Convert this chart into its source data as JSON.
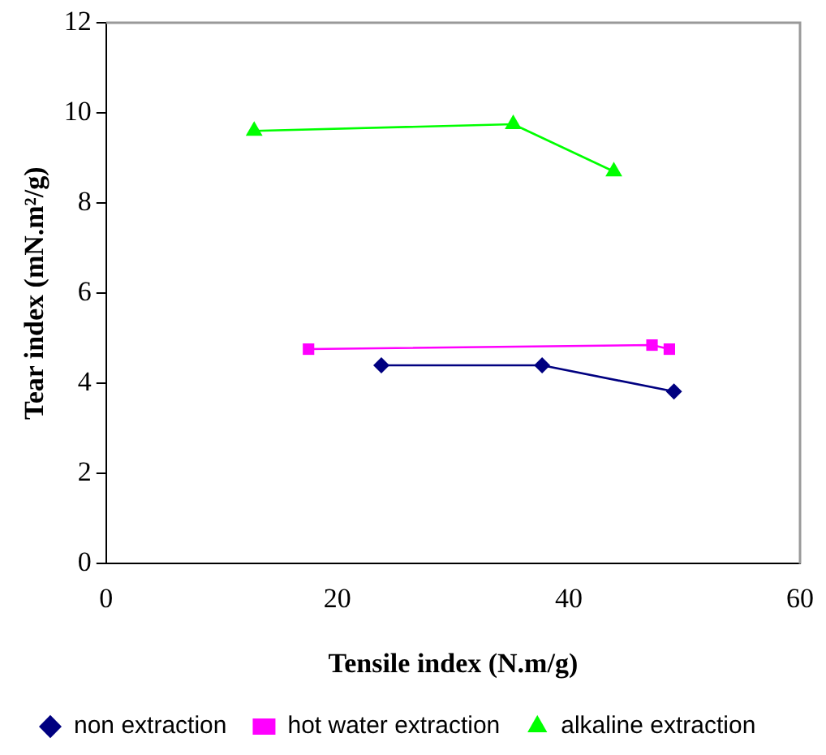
{
  "chart_data": {
    "type": "line",
    "xlabel": "Tensile index (N.m/g)",
    "ylabel": "Tear index (mN.m²/g)",
    "xlim": [
      0,
      60
    ],
    "xticks": [
      0,
      20,
      40,
      60
    ],
    "ylim": [
      0,
      12
    ],
    "yticks": [
      0,
      2,
      4,
      6,
      8,
      10,
      12
    ],
    "grid": false,
    "legend": "bottom",
    "series": [
      {
        "name": "non extraction",
        "color": "#000080",
        "marker": "diamond",
        "x": [
          23.8,
          37.7,
          49.1
        ],
        "values": [
          4.4,
          4.4,
          3.82
        ]
      },
      {
        "name": "hot water extraction",
        "color": "#ff00ff",
        "marker": "square",
        "x": [
          17.5,
          47.2,
          48.7
        ],
        "values": [
          4.76,
          4.85,
          4.76
        ]
      },
      {
        "name": "alkaline extraction",
        "color": "#00ff00",
        "marker": "triangle",
        "x": [
          12.8,
          35.2,
          43.9
        ],
        "values": [
          9.6,
          9.75,
          8.7
        ]
      }
    ]
  }
}
